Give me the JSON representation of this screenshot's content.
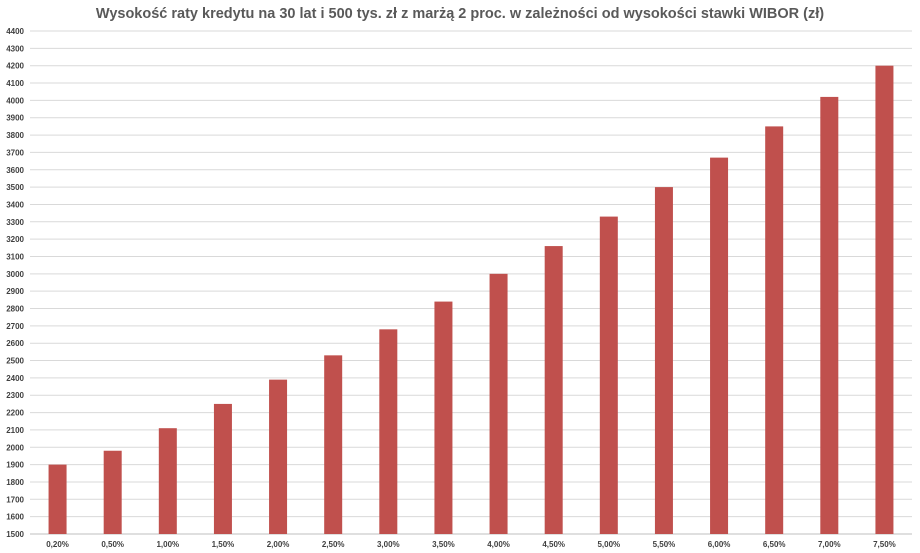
{
  "chart_data": {
    "type": "bar",
    "title": "Wysokość raty kredytu na 30 lat i 500 tys. zł z marżą 2 proc. w zależności od wysokości stawki WIBOR (zł)",
    "xlabel": "",
    "ylabel": "",
    "categories": [
      "0,20%",
      "0,50%",
      "1,00%",
      "1,50%",
      "2,00%",
      "2,50%",
      "3,00%",
      "3,50%",
      "4,00%",
      "4,50%",
      "5,00%",
      "5,50%",
      "6,00%",
      "6,50%",
      "7,00%",
      "7,50%"
    ],
    "values": [
      1900,
      1980,
      2110,
      2250,
      2390,
      2530,
      2680,
      2840,
      3000,
      3160,
      3330,
      3500,
      3670,
      3850,
      4020,
      4200
    ],
    "ylim": [
      1500,
      4400
    ],
    "ytick_step": 100,
    "grid": true,
    "legend": "none",
    "bar_color": "#c0504d"
  }
}
